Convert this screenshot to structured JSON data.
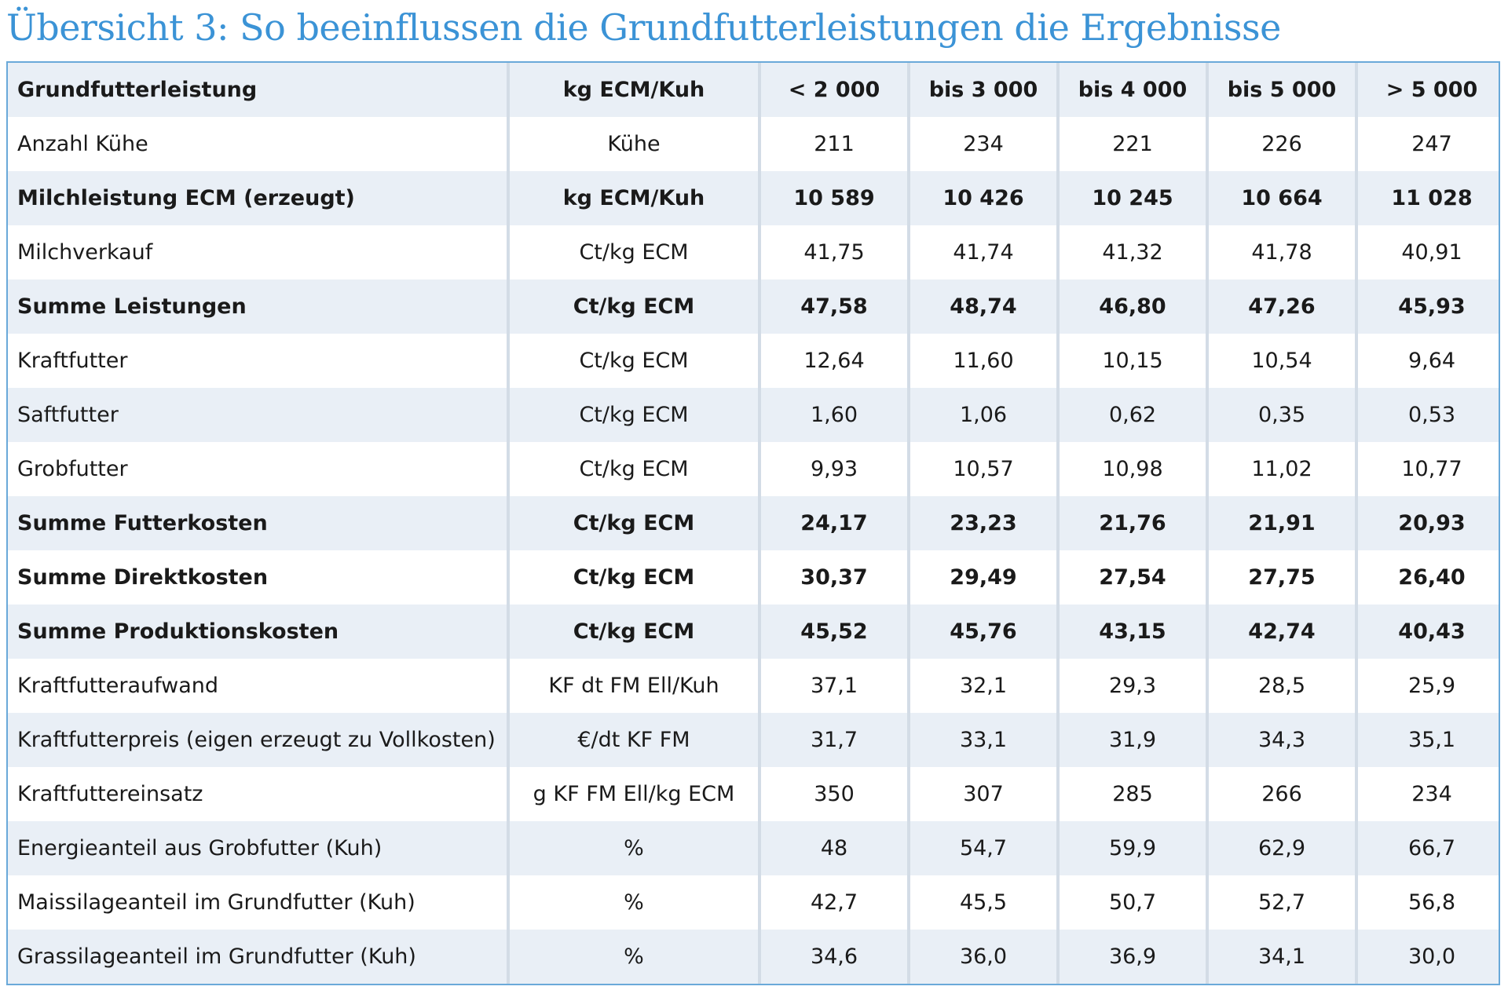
{
  "title": "Übersicht 3: So beeinflussen die Grundfutterleistungen die Ergebnisse",
  "table": {
    "rows": [
      {
        "label": "Grundfutterleistung",
        "unit": "kg ECM/Kuh",
        "values": [
          "< 2 000",
          "bis 3 000",
          "bis 4 000",
          "bis 5 000",
          "> 5 000"
        ],
        "bold": true
      },
      {
        "label": "Anzahl Kühe",
        "unit": "Kühe",
        "values": [
          "211",
          "234",
          "221",
          "226",
          "247"
        ],
        "bold": false
      },
      {
        "label": "Milchleistung ECM (erzeugt)",
        "unit": "kg ECM/Kuh",
        "values": [
          "10 589",
          "10 426",
          "10 245",
          "10 664",
          "11 028"
        ],
        "bold": true
      },
      {
        "label": "Milchverkauf",
        "unit": "Ct/kg ECM",
        "values": [
          "41,75",
          "41,74",
          "41,32",
          "41,78",
          "40,91"
        ],
        "bold": false
      },
      {
        "label": "Summe Leistungen",
        "unit": "Ct/kg ECM",
        "values": [
          "47,58",
          "48,74",
          "46,80",
          "47,26",
          "45,93"
        ],
        "bold": true
      },
      {
        "label": "Kraftfutter",
        "unit": "Ct/kg ECM",
        "values": [
          "12,64",
          "11,60",
          "10,15",
          "10,54",
          "9,64"
        ],
        "bold": false
      },
      {
        "label": "Saftfutter",
        "unit": "Ct/kg ECM",
        "values": [
          "1,60",
          "1,06",
          "0,62",
          "0,35",
          "0,53"
        ],
        "bold": false
      },
      {
        "label": "Grobfutter",
        "unit": "Ct/kg ECM",
        "values": [
          "9,93",
          "10,57",
          "10,98",
          "11,02",
          "10,77"
        ],
        "bold": false
      },
      {
        "label": "Summe Futterkosten",
        "unit": "Ct/kg ECM",
        "values": [
          "24,17",
          "23,23",
          "21,76",
          "21,91",
          "20,93"
        ],
        "bold": true
      },
      {
        "label": "Summe Direktkosten",
        "unit": "Ct/kg ECM",
        "values": [
          "30,37",
          "29,49",
          "27,54",
          "27,75",
          "26,40"
        ],
        "bold": true
      },
      {
        "label": "Summe Produktionskosten",
        "unit": "Ct/kg ECM",
        "values": [
          "45,52",
          "45,76",
          "43,15",
          "42,74",
          "40,43"
        ],
        "bold": true
      },
      {
        "label": "Kraftfutteraufwand",
        "unit": "KF dt FM Ell/Kuh",
        "values": [
          "37,1",
          "32,1",
          "29,3",
          "28,5",
          "25,9"
        ],
        "bold": false
      },
      {
        "label": "Kraftfutterpreis (eigen erzeugt zu Vollkosten)",
        "unit": "€/dt KF FM",
        "values": [
          "31,7",
          "33,1",
          "31,9",
          "34,3",
          "35,1"
        ],
        "bold": false
      },
      {
        "label": "Kraftfuttereinsatz",
        "unit": "g KF FM Ell/kg ECM",
        "values": [
          "350",
          "307",
          "285",
          "266",
          "234"
        ],
        "bold": false
      },
      {
        "label": "Energieanteil aus Grobfutter (Kuh)",
        "unit": "%",
        "values": [
          "48",
          "54,7",
          "59,9",
          "62,9",
          "66,7"
        ],
        "bold": false
      },
      {
        "label": "Maissilageanteil im Grundfutter (Kuh)",
        "unit": "%",
        "values": [
          "42,7",
          "45,5",
          "50,7",
          "52,7",
          "56,8"
        ],
        "bold": false
      },
      {
        "label": "Grassilageanteil im Grundfutter (Kuh)",
        "unit": "%",
        "values": [
          "34,6",
          "36,0",
          "36,9",
          "34,1",
          "30,0"
        ],
        "bold": false
      }
    ]
  },
  "colors": {
    "title": "#3b93d6",
    "frame": "#6aa9d9",
    "row_shade": "#e9eff6",
    "column_divider": "#d3dce6",
    "text": "#1a1a1a"
  }
}
